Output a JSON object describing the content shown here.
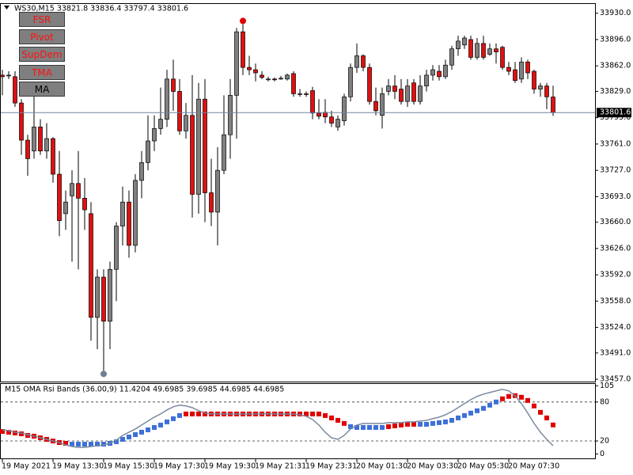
{
  "buttons": [
    "FSR",
    "Pivot",
    "SupDem",
    "TMA",
    "MA"
  ],
  "chart_data": [
    {
      "type": "candlestick",
      "title": "WS30,M15 33821.8 33836.4 33797.4 33801.6",
      "up_color": "#808080",
      "down_color": "#e01010",
      "categories": [
        "19 May 2021",
        null,
        null,
        null,
        null,
        null,
        null,
        null,
        "19 May 13:30",
        null,
        null,
        null,
        null,
        null,
        null,
        null,
        "19 May 15:30",
        null,
        null,
        null,
        null,
        null,
        null,
        null,
        "19 May 17:30",
        null,
        null,
        null,
        null,
        null,
        null,
        null,
        "19 May 19:30",
        null,
        null,
        null,
        null,
        null,
        null,
        null,
        "19 May 21:31",
        null,
        null,
        null,
        null,
        null,
        null,
        null,
        "19 May 23:31",
        null,
        null,
        null,
        null,
        null,
        null,
        null,
        "20 May 01:30",
        null,
        null,
        null,
        null,
        null,
        null,
        null,
        "20 May 03:30",
        null,
        null,
        null,
        null,
        null,
        null,
        null,
        "20 May 05:30",
        null,
        null,
        null,
        null,
        null,
        null,
        null,
        "20 May 07:30",
        null,
        null,
        null,
        null,
        null,
        null,
        null
      ],
      "open": [
        33850,
        33849,
        33848,
        33814,
        33766,
        33752,
        33783,
        33752,
        33768,
        33722,
        33671,
        33694,
        33710,
        33691,
        33671,
        33537,
        33589,
        33532,
        33599,
        33655,
        33686,
        33630,
        33714,
        33737,
        33765,
        33781,
        33793,
        33845,
        33829,
        33778,
        33798,
        33696,
        33819,
        33698,
        33673,
        33727,
        33773,
        33824,
        33906,
        33860,
        33857,
        33850,
        33845,
        33845,
        33846,
        33845,
        33852,
        33826,
        33826,
        33830,
        33801,
        33802,
        33796,
        33783,
        33791,
        33822,
        33860,
        33875,
        33860,
        33816,
        33798,
        33829,
        33836,
        33832,
        33816,
        33840,
        33816,
        33836,
        33850,
        33855,
        33848,
        33863,
        33884,
        33889,
        33896,
        33873,
        33891,
        33877,
        33884,
        33886,
        33860,
        33857,
        33845,
        33867,
        33855,
        33832,
        33836,
        33821.8
      ],
      "high": [
        33857,
        33855,
        33855,
        33819,
        33773,
        33828,
        33793,
        33788,
        33770,
        33752,
        33701,
        33727,
        33752,
        33717,
        33686,
        33599,
        33599,
        33609,
        33660,
        33706,
        33701,
        33722,
        33752,
        33798,
        33798,
        33834,
        33857,
        33870,
        33845,
        33814,
        33850,
        33840,
        33845,
        33742,
        33757,
        33824,
        33845,
        33911,
        33916,
        33875,
        33865,
        33855,
        33848,
        33847,
        33849,
        33852,
        33855,
        33832,
        33829,
        33835,
        33819,
        33819,
        33804,
        33798,
        33826,
        33865,
        33891,
        33877,
        33865,
        33834,
        33834,
        33845,
        33850,
        33845,
        33845,
        33845,
        33850,
        33857,
        33863,
        33863,
        33870,
        33888,
        33901,
        33901,
        33901,
        33898,
        33901,
        33891,
        33891,
        33888,
        33867,
        33867,
        33873,
        33870,
        33857,
        33840,
        33840,
        33836.4
      ],
      "low": [
        33824,
        33845,
        33809,
        33747,
        33720,
        33742,
        33747,
        33742,
        33711,
        33642,
        33650,
        33609,
        33599,
        33650,
        33507,
        33496,
        33468,
        33496,
        33558,
        33630,
        33614,
        33621,
        33691,
        33727,
        33752,
        33773,
        33783,
        33804,
        33773,
        33768,
        33666,
        33671,
        33660,
        33655,
        33630,
        33722,
        33742,
        33768,
        33850,
        33850,
        33842,
        33845,
        33842,
        33842,
        33844,
        33843,
        33822,
        33822,
        33822,
        33793,
        33793,
        33788,
        33783,
        33778,
        33785,
        33816,
        33853,
        33855,
        33812,
        33798,
        33781,
        33824,
        33819,
        33812,
        33809,
        33812,
        33812,
        33829,
        33843,
        33843,
        33845,
        33857,
        33875,
        33884,
        33870,
        33870,
        33870,
        33875,
        33865,
        33857,
        33850,
        33840,
        33840,
        33845,
        33826,
        33822,
        33806,
        33797.4
      ],
      "close": [
        33848,
        33850,
        33814,
        33766,
        33742,
        33783,
        33752,
        33768,
        33722,
        33662,
        33686,
        33710,
        33691,
        33676,
        33537,
        33589,
        33532,
        33599,
        33655,
        33686,
        33630,
        33714,
        33737,
        33765,
        33781,
        33793,
        33845,
        33829,
        33778,
        33798,
        33696,
        33819,
        33698,
        33673,
        33727,
        33773,
        33824,
        33906,
        33860,
        33857,
        33853,
        33847,
        33845,
        33844,
        33846,
        33850,
        33826,
        33826,
        33825,
        33801,
        33797,
        33796,
        33788,
        33793,
        33822,
        33860,
        33875,
        33860,
        33816,
        33804,
        33826,
        33836,
        33829,
        33816,
        33836,
        33816,
        33836,
        33850,
        33857,
        33848,
        33863,
        33884,
        33894,
        33898,
        33873,
        33891,
        33873,
        33884,
        33880,
        33860,
        33855,
        33843,
        33867,
        33853,
        33832,
        33836,
        33822,
        33801.6
      ],
      "ylim": [
        33454,
        33942
      ],
      "yticks": [
        {
          "value": 33930,
          "label": "33930.0"
        },
        {
          "value": 33896,
          "label": "33896.0"
        },
        {
          "value": 33862,
          "label": "33862.0"
        },
        {
          "value": 33829,
          "label": "33829.0"
        },
        {
          "value": 33795,
          "label": "33795.0"
        },
        {
          "value": 33761,
          "label": "33761.0"
        },
        {
          "value": 33727,
          "label": "33727.0"
        },
        {
          "value": 33693,
          "label": "33693.0"
        },
        {
          "value": 33660,
          "label": "33660.0"
        },
        {
          "value": 33626,
          "label": "33626.0"
        },
        {
          "value": 33592,
          "label": "33592.0"
        },
        {
          "value": 33558,
          "label": "33558.0"
        },
        {
          "value": 33524,
          "label": "33524.0"
        },
        {
          "value": 33491,
          "label": "33491.0"
        },
        {
          "value": 33457,
          "label": "33457.0"
        }
      ]
    },
    {
      "type": "line",
      "title": "M15 OMA Rsi Bands (36.00,9) 11.4204 49.6985 39.6985 44.6985 44.6985",
      "ylim": [
        -8,
        109
      ],
      "yticks": [
        105,
        80,
        20,
        0
      ],
      "levels": [
        80,
        20
      ],
      "series": [
        {
          "color": "#e00000",
          "marker": "square",
          "values": [
            34.7,
            33.5,
            32.3,
            31.0,
            28.6,
            27.4,
            24.9,
            22.5,
            20.0,
            17.6,
            16.4,
            null,
            null,
            null,
            null,
            null,
            null,
            null,
            null,
            null,
            null,
            null,
            null,
            null,
            null,
            null,
            null,
            null,
            null,
            61.6,
            61.6,
            61.6,
            61.6,
            61.6,
            61.6,
            61.6,
            61.6,
            61.6,
            61.6,
            61.6,
            61.6,
            61.6,
            61.6,
            61.6,
            61.6,
            61.6,
            61.6,
            61.6,
            61.6,
            61.6,
            61.6,
            59.2,
            55.5,
            51.8,
            47.0,
            null,
            null,
            null,
            null,
            null,
            null,
            42.1,
            43.3,
            44.5,
            45.7,
            45.7,
            null,
            null,
            null,
            null,
            null,
            null,
            null,
            null,
            null,
            null,
            null,
            null,
            null,
            84.9,
            88.6,
            89.8,
            87.3,
            82.4,
            73.9,
            64.1,
            55.5,
            44.7
          ]
        },
        {
          "color": "#3c6fd8",
          "marker": "square",
          "values": [
            null,
            null,
            null,
            null,
            null,
            null,
            null,
            null,
            null,
            null,
            null,
            15.1,
            15.1,
            15.1,
            15.1,
            15.1,
            15.1,
            16.4,
            18.8,
            22.5,
            26.1,
            29.8,
            33.5,
            37.2,
            40.8,
            44.5,
            49.4,
            54.3,
            59.2,
            null,
            null,
            null,
            null,
            null,
            null,
            null,
            null,
            null,
            null,
            null,
            null,
            null,
            null,
            null,
            null,
            null,
            null,
            null,
            null,
            null,
            null,
            null,
            null,
            null,
            null,
            42.1,
            40.8,
            40.8,
            40.8,
            40.8,
            40.8,
            null,
            null,
            null,
            null,
            null,
            45.7,
            45.7,
            47.0,
            48.2,
            49.4,
            51.8,
            55.5,
            59.2,
            62.9,
            66.5,
            70.2,
            75.1,
            80.0,
            null,
            null,
            null,
            null,
            null,
            null,
            null,
            null,
            null
          ]
        },
        {
          "color": "#7a8a9e",
          "marker": "line",
          "values": [
            37.2,
            35.9,
            33.5,
            32.3,
            29.8,
            27.4,
            24.9,
            22.5,
            20.0,
            17.6,
            13.9,
            11.5,
            10.2,
            10.2,
            11.5,
            12.7,
            13.9,
            16.4,
            21.2,
            28.6,
            33.5,
            38.4,
            44.5,
            50.6,
            56.7,
            61.6,
            67.8,
            72.7,
            75.1,
            73.9,
            71.4,
            66.5,
            62.9,
            61.6,
            61.6,
            61.6,
            61.6,
            61.6,
            61.6,
            61.6,
            61.6,
            61.6,
            61.6,
            61.6,
            61.6,
            61.6,
            61.6,
            60.4,
            58.0,
            53.1,
            44.5,
            33.5,
            24.9,
            22.5,
            28.6,
            38.4,
            44.5,
            47.0,
            47.0,
            47.0,
            47.0,
            48.2,
            48.2,
            48.2,
            49.4,
            49.4,
            50.6,
            51.8,
            54.3,
            56.7,
            60.4,
            65.3,
            71.4,
            77.6,
            83.7,
            88.6,
            92.2,
            94.7,
            97.1,
            99.6,
            97.1,
            89.8,
            77.6,
            62.9,
            47.0,
            33.5,
            22.5,
            12.7
          ]
        }
      ]
    }
  ]
}
